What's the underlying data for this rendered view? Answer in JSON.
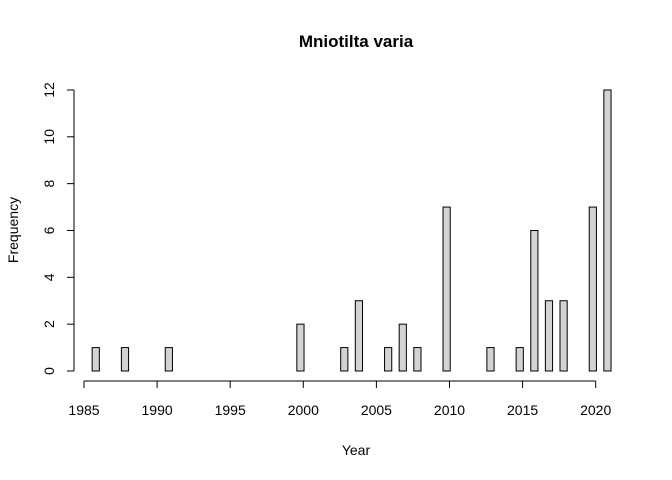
{
  "chart_data": {
    "type": "bar",
    "title": "Mniotilta varia",
    "xlabel": "Year",
    "ylabel": "Frequency",
    "xlim": [
      1985,
      2021
    ],
    "ylim": [
      0,
      12
    ],
    "xticks": [
      "1985",
      "1990",
      "1995",
      "2000",
      "2005",
      "2010",
      "2015",
      "2020"
    ],
    "yticks": [
      "0",
      "2",
      "4",
      "6",
      "8",
      "10",
      "12"
    ],
    "grid": false,
    "legend": "none",
    "bar_color": "#d3d3d3",
    "x": [
      1986,
      1987,
      1988,
      1989,
      1990,
      1991,
      1992,
      1993,
      1994,
      1995,
      1996,
      1997,
      1998,
      1999,
      2000,
      2001,
      2002,
      2003,
      2004,
      2005,
      2006,
      2007,
      2008,
      2009,
      2010,
      2011,
      2012,
      2013,
      2014,
      2015,
      2016,
      2017,
      2018,
      2019,
      2020,
      2021
    ],
    "values": [
      1,
      0,
      1,
      0,
      0,
      1,
      0,
      0,
      0,
      0,
      0,
      0,
      0,
      0,
      2,
      0,
      0,
      1,
      3,
      0,
      1,
      2,
      1,
      0,
      7,
      0,
      0,
      1,
      0,
      1,
      6,
      3,
      3,
      0,
      7,
      12
    ]
  }
}
